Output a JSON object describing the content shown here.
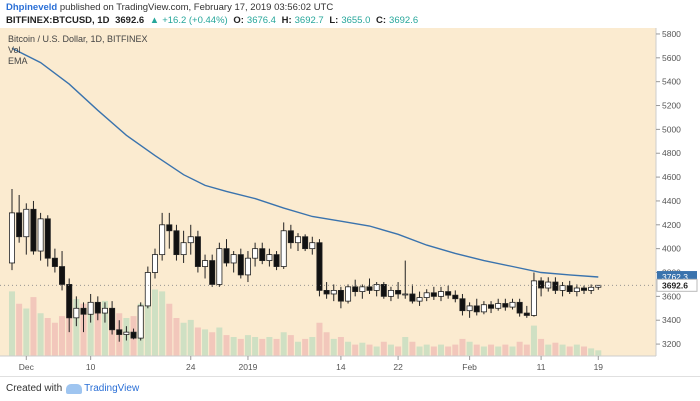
{
  "header": {
    "username": "Dhpineveld",
    "published_text": "published on TradingView.com, February 17, 2019 03:56:02 UTC",
    "symbol": "BITFINEX:BTCUSD, 1D",
    "last_price": "3692.6",
    "change_arrow": "▲",
    "change": "+16.2 (+0.44%)",
    "o_label": "O:",
    "o_value": "3676.4",
    "h_label": "H:",
    "h_value": "3692.7",
    "l_label": "L:",
    "l_value": "3655.0",
    "c_label": "C:",
    "c_value": "3692.6"
  },
  "footer": {
    "created_with": "Created with",
    "brand": "TradingView"
  },
  "colors": {
    "background": "#fbebd0",
    "candle_up": "#ffffff",
    "candle_down": "#111111",
    "wick": "#222222",
    "ema": "#3a73ad",
    "vol_up": "#cfe0c3",
    "vol_down": "#f2c7bb",
    "axis_line": "#cccccc"
  },
  "chart_data": {
    "type": "candlestick",
    "title": "Bitcoin / U.S. Dollar, 1D, BITFINEX",
    "legend": [
      "Vol",
      "EMA"
    ],
    "ylim": [
      3100,
      5850
    ],
    "y_ticks": [
      3200,
      3400,
      3600,
      3800,
      4000,
      4200,
      4400,
      4600,
      4800,
      5000,
      5200,
      5400,
      5600,
      5800
    ],
    "x_ticks": [
      {
        "label": "Dec",
        "index": 2
      },
      {
        "label": "10",
        "index": 11
      },
      {
        "label": "24",
        "index": 25
      },
      {
        "label": "2019",
        "index": 33
      },
      {
        "label": "14",
        "index": 46
      },
      {
        "label": "22",
        "index": 54
      },
      {
        "label": "Feb",
        "index": 64
      },
      {
        "label": "11",
        "index": 74
      },
      {
        "label": "19",
        "index": 82
      }
    ],
    "last_price_label": "3692.6",
    "ema_tag_label": "3762.3",
    "candles": [
      {
        "o": 3880,
        "h": 4500,
        "l": 3820,
        "c": 4300
      },
      {
        "o": 4300,
        "h": 4450,
        "l": 4050,
        "c": 4100
      },
      {
        "o": 4100,
        "h": 4380,
        "l": 3950,
        "c": 4330
      },
      {
        "o": 4330,
        "h": 4400,
        "l": 3950,
        "c": 3980
      },
      {
        "o": 3980,
        "h": 4300,
        "l": 3900,
        "c": 4250
      },
      {
        "o": 4250,
        "h": 4280,
        "l": 3850,
        "c": 3920
      },
      {
        "o": 3920,
        "h": 4000,
        "l": 3800,
        "c": 3850
      },
      {
        "o": 3850,
        "h": 3980,
        "l": 3650,
        "c": 3700
      },
      {
        "o": 3700,
        "h": 3750,
        "l": 3300,
        "c": 3420
      },
      {
        "o": 3420,
        "h": 3600,
        "l": 3350,
        "c": 3500
      },
      {
        "o": 3500,
        "h": 3550,
        "l": 3300,
        "c": 3450
      },
      {
        "o": 3450,
        "h": 3620,
        "l": 3380,
        "c": 3550
      },
      {
        "o": 3550,
        "h": 3600,
        "l": 3400,
        "c": 3460
      },
      {
        "o": 3460,
        "h": 3550,
        "l": 3380,
        "c": 3500
      },
      {
        "o": 3500,
        "h": 3560,
        "l": 3280,
        "c": 3320
      },
      {
        "o": 3320,
        "h": 3400,
        "l": 3220,
        "c": 3280
      },
      {
        "o": 3280,
        "h": 3350,
        "l": 3230,
        "c": 3300
      },
      {
        "o": 3300,
        "h": 3330,
        "l": 3240,
        "c": 3250
      },
      {
        "o": 3250,
        "h": 3550,
        "l": 3230,
        "c": 3520
      },
      {
        "o": 3520,
        "h": 3850,
        "l": 3500,
        "c": 3800
      },
      {
        "o": 3800,
        "h": 4000,
        "l": 3750,
        "c": 3950
      },
      {
        "o": 3950,
        "h": 4300,
        "l": 3900,
        "c": 4200
      },
      {
        "o": 4200,
        "h": 4300,
        "l": 4000,
        "c": 4150
      },
      {
        "o": 4150,
        "h": 4200,
        "l": 3900,
        "c": 3950
      },
      {
        "o": 3950,
        "h": 4150,
        "l": 3880,
        "c": 4050
      },
      {
        "o": 4050,
        "h": 4200,
        "l": 3950,
        "c": 4100
      },
      {
        "o": 4100,
        "h": 4150,
        "l": 3800,
        "c": 3850
      },
      {
        "o": 3850,
        "h": 3950,
        "l": 3750,
        "c": 3900
      },
      {
        "o": 3900,
        "h": 3950,
        "l": 3680,
        "c": 3700
      },
      {
        "o": 3700,
        "h": 4050,
        "l": 3680,
        "c": 4000
      },
      {
        "o": 4000,
        "h": 4080,
        "l": 3850,
        "c": 3880
      },
      {
        "o": 3880,
        "h": 3980,
        "l": 3800,
        "c": 3950
      },
      {
        "o": 3950,
        "h": 4000,
        "l": 3750,
        "c": 3780
      },
      {
        "o": 3780,
        "h": 3980,
        "l": 3720,
        "c": 3920
      },
      {
        "o": 3920,
        "h": 4050,
        "l": 3850,
        "c": 4000
      },
      {
        "o": 4000,
        "h": 4050,
        "l": 3870,
        "c": 3900
      },
      {
        "o": 3900,
        "h": 4000,
        "l": 3850,
        "c": 3950
      },
      {
        "o": 3950,
        "h": 3980,
        "l": 3820,
        "c": 3850
      },
      {
        "o": 3850,
        "h": 4220,
        "l": 3830,
        "c": 4150
      },
      {
        "o": 4150,
        "h": 4200,
        "l": 4000,
        "c": 4050
      },
      {
        "o": 4050,
        "h": 4130,
        "l": 3980,
        "c": 4100
      },
      {
        "o": 4100,
        "h": 4120,
        "l": 3980,
        "c": 4000
      },
      {
        "o": 4000,
        "h": 4100,
        "l": 3950,
        "c": 4050
      },
      {
        "o": 4050,
        "h": 4080,
        "l": 3600,
        "c": 3650
      },
      {
        "o": 3650,
        "h": 3720,
        "l": 3580,
        "c": 3620
      },
      {
        "o": 3620,
        "h": 3700,
        "l": 3560,
        "c": 3650
      },
      {
        "o": 3650,
        "h": 3680,
        "l": 3500,
        "c": 3560
      },
      {
        "o": 3560,
        "h": 3700,
        "l": 3540,
        "c": 3680
      },
      {
        "o": 3680,
        "h": 3740,
        "l": 3600,
        "c": 3640
      },
      {
        "o": 3640,
        "h": 3700,
        "l": 3580,
        "c": 3680
      },
      {
        "o": 3680,
        "h": 3750,
        "l": 3620,
        "c": 3650
      },
      {
        "o": 3650,
        "h": 3720,
        "l": 3600,
        "c": 3700
      },
      {
        "o": 3700,
        "h": 3720,
        "l": 3580,
        "c": 3600
      },
      {
        "o": 3600,
        "h": 3680,
        "l": 3560,
        "c": 3650
      },
      {
        "o": 3650,
        "h": 3720,
        "l": 3580,
        "c": 3620
      },
      {
        "o": 3620,
        "h": 3900,
        "l": 3580,
        "c": 3620
      },
      {
        "o": 3620,
        "h": 3700,
        "l": 3540,
        "c": 3560
      },
      {
        "o": 3560,
        "h": 3640,
        "l": 3520,
        "c": 3590
      },
      {
        "o": 3590,
        "h": 3660,
        "l": 3560,
        "c": 3630
      },
      {
        "o": 3630,
        "h": 3680,
        "l": 3570,
        "c": 3600
      },
      {
        "o": 3600,
        "h": 3680,
        "l": 3560,
        "c": 3640
      },
      {
        "o": 3640,
        "h": 3690,
        "l": 3580,
        "c": 3610
      },
      {
        "o": 3610,
        "h": 3650,
        "l": 3550,
        "c": 3580
      },
      {
        "o": 3580,
        "h": 3620,
        "l": 3440,
        "c": 3480
      },
      {
        "o": 3480,
        "h": 3550,
        "l": 3420,
        "c": 3520
      },
      {
        "o": 3520,
        "h": 3580,
        "l": 3440,
        "c": 3470
      },
      {
        "o": 3470,
        "h": 3560,
        "l": 3450,
        "c": 3530
      },
      {
        "o": 3530,
        "h": 3560,
        "l": 3460,
        "c": 3500
      },
      {
        "o": 3500,
        "h": 3580,
        "l": 3480,
        "c": 3540
      },
      {
        "o": 3540,
        "h": 3580,
        "l": 3480,
        "c": 3510
      },
      {
        "o": 3510,
        "h": 3580,
        "l": 3490,
        "c": 3550
      },
      {
        "o": 3550,
        "h": 3580,
        "l": 3430,
        "c": 3460
      },
      {
        "o": 3460,
        "h": 3520,
        "l": 3420,
        "c": 3440
      },
      {
        "o": 3440,
        "h": 3800,
        "l": 3430,
        "c": 3730
      },
      {
        "o": 3730,
        "h": 3760,
        "l": 3600,
        "c": 3670
      },
      {
        "o": 3670,
        "h": 3760,
        "l": 3640,
        "c": 3720
      },
      {
        "o": 3720,
        "h": 3760,
        "l": 3620,
        "c": 3650
      },
      {
        "o": 3650,
        "h": 3720,
        "l": 3600,
        "c": 3690
      },
      {
        "o": 3690,
        "h": 3730,
        "l": 3620,
        "c": 3640
      },
      {
        "o": 3640,
        "h": 3700,
        "l": 3600,
        "c": 3670
      },
      {
        "o": 3670,
        "h": 3690,
        "l": 3620,
        "c": 3650
      },
      {
        "o": 3650,
        "h": 3700,
        "l": 3620,
        "c": 3676
      },
      {
        "o": 3676.4,
        "h": 3692.7,
        "l": 3655.0,
        "c": 3692.6
      }
    ],
    "volume": [
      0.68,
      0.55,
      0.5,
      0.62,
      0.45,
      0.4,
      0.35,
      0.42,
      0.7,
      0.6,
      0.55,
      0.48,
      0.52,
      0.58,
      0.5,
      0.45,
      0.4,
      0.42,
      0.55,
      0.62,
      0.7,
      0.68,
      0.55,
      0.4,
      0.35,
      0.38,
      0.3,
      0.28,
      0.25,
      0.3,
      0.22,
      0.2,
      0.18,
      0.22,
      0.2,
      0.18,
      0.2,
      0.18,
      0.25,
      0.22,
      0.15,
      0.18,
      0.2,
      0.35,
      0.25,
      0.18,
      0.2,
      0.15,
      0.12,
      0.14,
      0.12,
      0.1,
      0.15,
      0.12,
      0.1,
      0.2,
      0.15,
      0.1,
      0.12,
      0.1,
      0.12,
      0.1,
      0.12,
      0.18,
      0.15,
      0.12,
      0.1,
      0.12,
      0.1,
      0.12,
      0.1,
      0.15,
      0.12,
      0.32,
      0.18,
      0.12,
      0.14,
      0.12,
      0.1,
      0.12,
      0.1,
      0.08,
      0.06
    ],
    "ema": [
      {
        "i": 0,
        "v": 5680
      },
      {
        "i": 4,
        "v": 5560
      },
      {
        "i": 8,
        "v": 5380
      },
      {
        "i": 12,
        "v": 5160
      },
      {
        "i": 16,
        "v": 4950
      },
      {
        "i": 20,
        "v": 4780
      },
      {
        "i": 24,
        "v": 4620
      },
      {
        "i": 27,
        "v": 4530
      },
      {
        "i": 30,
        "v": 4480
      },
      {
        "i": 34,
        "v": 4420
      },
      {
        "i": 38,
        "v": 4340
      },
      {
        "i": 42,
        "v": 4270
      },
      {
        "i": 46,
        "v": 4230
      },
      {
        "i": 50,
        "v": 4190
      },
      {
        "i": 54,
        "v": 4120
      },
      {
        "i": 58,
        "v": 4030
      },
      {
        "i": 62,
        "v": 3960
      },
      {
        "i": 66,
        "v": 3900
      },
      {
        "i": 70,
        "v": 3850
      },
      {
        "i": 74,
        "v": 3800
      },
      {
        "i": 78,
        "v": 3780
      },
      {
        "i": 82,
        "v": 3762
      }
    ]
  }
}
